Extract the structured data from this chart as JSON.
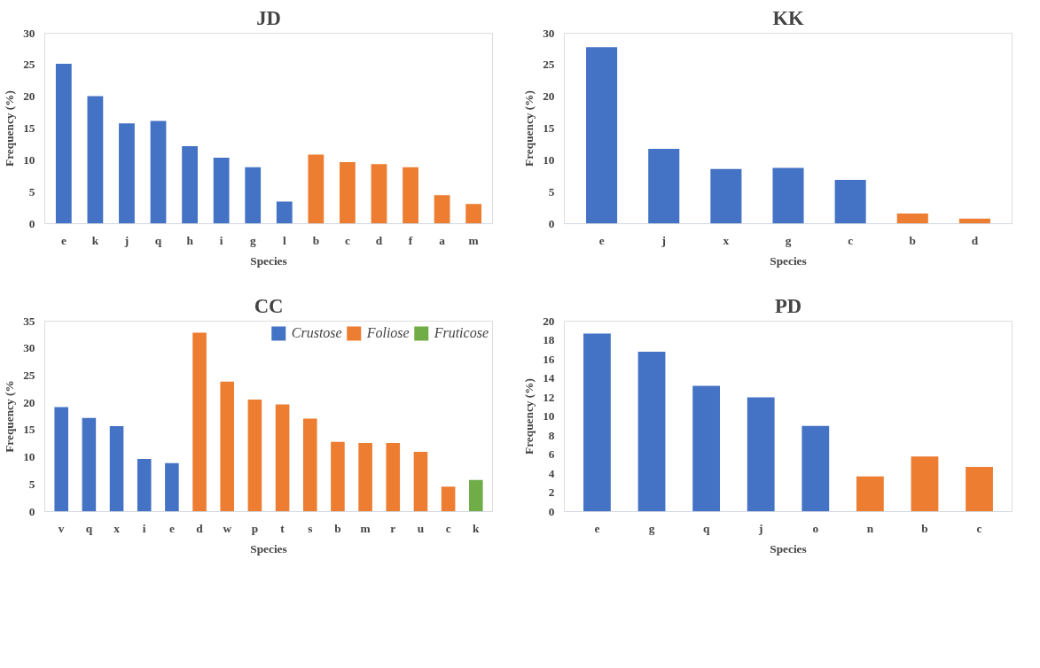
{
  "chart_data": [
    {
      "type": "bar",
      "title": "JD",
      "xlabel": "Species",
      "ylabel": "Frequency (%)",
      "categories": [
        "e",
        "k",
        "j",
        "q",
        "h",
        "i",
        "g",
        "l",
        "b",
        "c",
        "d",
        "f",
        "a",
        "m"
      ],
      "ylim": [
        0,
        30
      ],
      "yticks": [
        0,
        5,
        10,
        15,
        20,
        25,
        30
      ],
      "grid": false,
      "series": [
        {
          "color": "#4472c4",
          "values": [
            25.2,
            20.1,
            15.8,
            16.2,
            12.2,
            10.4,
            8.9,
            3.5,
            null,
            null,
            null,
            null,
            null,
            null
          ]
        },
        {
          "color": "#ed7d31",
          "values": [
            null,
            null,
            null,
            null,
            null,
            null,
            null,
            null,
            10.9,
            9.7,
            9.4,
            8.9,
            4.5,
            3.1
          ]
        }
      ]
    },
    {
      "type": "bar",
      "title": "KK",
      "xlabel": "Species",
      "ylabel": "Frequency (%)",
      "categories": [
        "e",
        "j",
        "x",
        "g",
        "c",
        "b",
        "d"
      ],
      "ylim": [
        0,
        30
      ],
      "yticks": [
        0,
        5,
        10,
        15,
        20,
        25,
        30
      ],
      "grid": false,
      "series": [
        {
          "color": "#4472c4",
          "values": [
            27.8,
            11.8,
            8.6,
            8.8,
            6.9,
            null,
            null
          ]
        },
        {
          "color": "#ed7d31",
          "values": [
            null,
            null,
            null,
            null,
            null,
            1.6,
            0.8
          ]
        }
      ]
    },
    {
      "type": "bar",
      "title": "CC",
      "xlabel": "Species",
      "ylabel": "Frequency (%",
      "categories": [
        "v",
        "q",
        "x",
        "i",
        "e",
        "d",
        "w",
        "p",
        "t",
        "s",
        "b",
        "m",
        "r",
        "u",
        "c",
        "k"
      ],
      "ylim": [
        0,
        35
      ],
      "yticks": [
        0,
        5,
        10,
        15,
        20,
        25,
        30,
        35
      ],
      "grid": false,
      "legend": "top right",
      "series": [
        {
          "name": "Crustose",
          "color": "#4472c4",
          "values": [
            19.2,
            17.2,
            15.7,
            9.7,
            8.9,
            null,
            null,
            null,
            null,
            null,
            null,
            null,
            null,
            null,
            null,
            null
          ]
        },
        {
          "name": "Foliose",
          "color": "#ed7d31",
          "values": [
            null,
            null,
            null,
            null,
            null,
            32.9,
            23.9,
            20.6,
            19.7,
            17.1,
            12.8,
            12.6,
            12.6,
            11.0,
            4.6,
            null
          ]
        },
        {
          "name": "Fruticose",
          "color": "#70ad47",
          "values": [
            null,
            null,
            null,
            null,
            null,
            null,
            null,
            null,
            null,
            null,
            null,
            null,
            null,
            null,
            null,
            5.8
          ]
        }
      ]
    },
    {
      "type": "bar",
      "title": "PD",
      "xlabel": "Species",
      "ylabel": "Frequency (%)",
      "categories": [
        "e",
        "g",
        "q",
        "j",
        "o",
        "n",
        "b",
        "c"
      ],
      "ylim": [
        0,
        20
      ],
      "yticks": [
        0,
        2,
        4,
        6,
        8,
        10,
        12,
        14,
        16,
        18,
        20
      ],
      "grid": false,
      "series": [
        {
          "color": "#4472c4",
          "values": [
            18.7,
            16.8,
            13.2,
            12.0,
            9.0,
            null,
            null,
            null
          ]
        },
        {
          "color": "#ed7d31",
          "values": [
            null,
            null,
            null,
            null,
            null,
            3.7,
            5.8,
            4.7
          ]
        }
      ]
    }
  ]
}
